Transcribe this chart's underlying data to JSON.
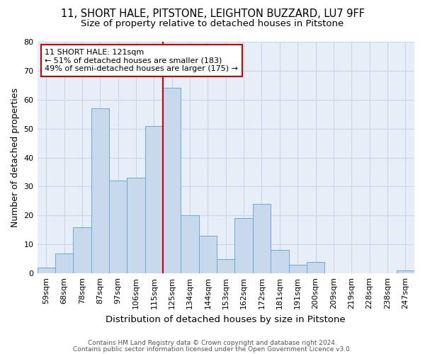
{
  "title_line1": "11, SHORT HALE, PITSTONE, LEIGHTON BUZZARD, LU7 9FF",
  "title_line2": "Size of property relative to detached houses in Pitstone",
  "xlabel": "Distribution of detached houses by size in Pitstone",
  "ylabel": "Number of detached properties",
  "categories": [
    "59sqm",
    "68sqm",
    "78sqm",
    "87sqm",
    "97sqm",
    "106sqm",
    "115sqm",
    "125sqm",
    "134sqm",
    "144sqm",
    "153sqm",
    "162sqm",
    "172sqm",
    "181sqm",
    "191sqm",
    "200sqm",
    "209sqm",
    "219sqm",
    "228sqm",
    "238sqm",
    "247sqm"
  ],
  "values": [
    2,
    7,
    16,
    57,
    32,
    33,
    51,
    64,
    20,
    13,
    5,
    19,
    24,
    8,
    3,
    4,
    0,
    0,
    0,
    0,
    1
  ],
  "bar_color": "#c9d9ed",
  "bar_edge_color": "#6aaad4",
  "annotation_text": "11 SHORT HALE: 121sqm\n← 51% of detached houses are smaller (183)\n49% of semi-detached houses are larger (175) →",
  "annotation_box_color": "#ffffff",
  "annotation_box_edge_color": "#cc0000",
  "vline_color": "#cc0000",
  "ylim": [
    0,
    80
  ],
  "yticks": [
    0,
    10,
    20,
    30,
    40,
    50,
    60,
    70,
    80
  ],
  "grid_color": "#c8d4e8",
  "background_color": "#e8eef8",
  "footer_line1": "Contains HM Land Registry data © Crown copyright and database right 2024.",
  "footer_line2": "Contains public sector information licensed under the Open Government Licence v3.0.",
  "title_fontsize": 10.5,
  "subtitle_fontsize": 9.5,
  "axis_label_fontsize": 9,
  "tick_fontsize": 8,
  "annotation_fontsize": 8,
  "footer_fontsize": 6.5,
  "vline_x_index": 6.88
}
